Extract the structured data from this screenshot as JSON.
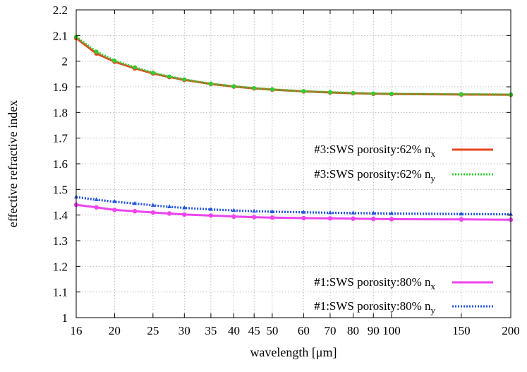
{
  "chart_data": {
    "type": "line",
    "title": "",
    "xlabel": "wavelength  [μm]",
    "ylabel": "effective refractive index",
    "xscale": "log",
    "xlim": [
      16,
      200
    ],
    "ylim": [
      1,
      2.2
    ],
    "grid": true,
    "x_ticks": [
      16,
      20,
      25,
      30,
      35,
      40,
      45,
      50,
      60,
      70,
      80,
      90,
      100,
      150,
      200
    ],
    "x_tick_labels": [
      "16",
      "20",
      "25",
      "30",
      "35",
      "40",
      "45",
      "50",
      "60",
      "70",
      "80",
      "90",
      "100",
      "150",
      "200"
    ],
    "y_ticks": [
      1,
      1.1,
      1.2,
      1.3,
      1.4,
      1.5,
      1.6,
      1.7,
      1.8,
      1.9,
      2,
      2.1,
      2.2
    ],
    "y_tick_labels": [
      "1",
      "1.1",
      "1.2",
      "1.3",
      "1.4",
      "1.5",
      "1.6",
      "1.7",
      "1.8",
      "1.9",
      "2",
      "2.1",
      "2.2"
    ],
    "x": [
      16,
      18,
      20,
      22.5,
      25,
      27.5,
      30,
      35,
      40,
      45,
      50,
      60,
      70,
      80,
      90,
      100,
      150,
      200
    ],
    "series": [
      {
        "name": "#3:SWS porosity:62% n",
        "subscript": "x",
        "color": "#e8461e",
        "style": "solid",
        "values": [
          2.09,
          2.03,
          1.998,
          1.972,
          1.952,
          1.938,
          1.927,
          1.911,
          1.901,
          1.894,
          1.889,
          1.882,
          1.878,
          1.875,
          1.873,
          1.872,
          1.87,
          1.869
        ]
      },
      {
        "name": "#3:SWS porosity:62% n",
        "subscript": "y",
        "color": "#33cc33",
        "style": "dotted",
        "values": [
          2.095,
          2.037,
          2.002,
          1.976,
          1.955,
          1.94,
          1.929,
          1.912,
          1.902,
          1.895,
          1.89,
          1.883,
          1.879,
          1.876,
          1.874,
          1.873,
          1.871,
          1.87
        ]
      },
      {
        "name": "#1:SWS porosity:80% n",
        "subscript": "x",
        "color": "#ee44ee",
        "style": "solid",
        "values": [
          1.44,
          1.43,
          1.42,
          1.415,
          1.41,
          1.406,
          1.402,
          1.398,
          1.394,
          1.392,
          1.39,
          1.388,
          1.387,
          1.386,
          1.385,
          1.384,
          1.383,
          1.382
        ]
      },
      {
        "name": "#1:SWS porosity:80% n",
        "subscript": "y",
        "color": "#2255dd",
        "style": "dotted",
        "values": [
          1.47,
          1.46,
          1.452,
          1.445,
          1.438,
          1.432,
          1.428,
          1.422,
          1.418,
          1.415,
          1.413,
          1.411,
          1.409,
          1.408,
          1.407,
          1.406,
          1.404,
          1.403
        ]
      }
    ],
    "legend_groups": [
      "top-right",
      "bottom-right"
    ]
  }
}
